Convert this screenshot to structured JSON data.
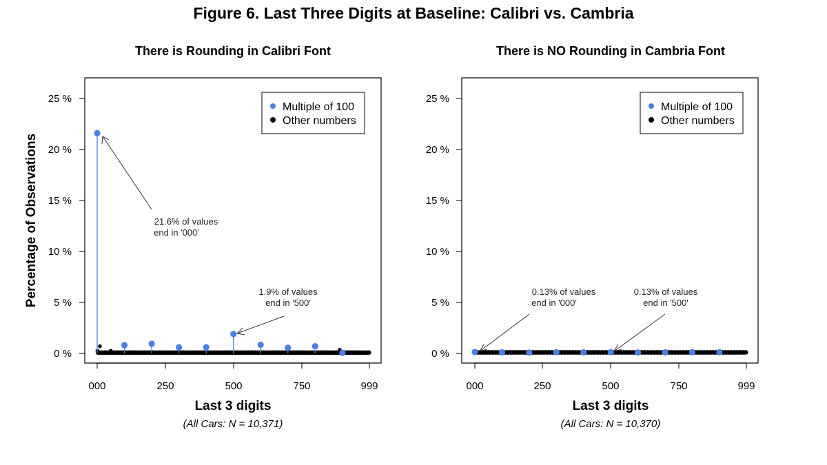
{
  "figure_title": "Figure 6. Last Three Digits at Baseline: Calibri vs. Cambria",
  "colors": {
    "multiple": "#4b7fe6",
    "other": "#000000",
    "frame": "#000000",
    "arrow": "#333333"
  },
  "chart_data": [
    {
      "type": "scatter",
      "title": "There is Rounding in Calibri Font",
      "xlabel": "Last 3 digits",
      "ylabel": "Percentage of Observations",
      "note": "(All Cars: N = 10,371)",
      "xlim": [
        0,
        999
      ],
      "ylim": [
        0,
        25
      ],
      "xticks": [
        0,
        250,
        500,
        750,
        999
      ],
      "xtick_labels": [
        "000",
        "250",
        "500",
        "750",
        "999"
      ],
      "yticks": [
        0,
        5,
        10,
        15,
        20,
        25
      ],
      "ytick_labels": [
        "0 %",
        "5 %",
        "10 %",
        "15 %",
        "20 %",
        "25 %"
      ],
      "legend": [
        "Multiple of 100",
        "Other numbers"
      ],
      "legend_position": "top-right",
      "series": [
        {
          "name": "Multiple of 100",
          "x": [
            0,
            100,
            200,
            300,
            400,
            500,
            600,
            700,
            800,
            900
          ],
          "values": [
            21.6,
            0.8,
            0.95,
            0.6,
            0.6,
            1.9,
            0.85,
            0.55,
            0.7,
            0.05
          ]
        },
        {
          "name": "Other numbers",
          "typical_value": 0.08,
          "spikes": [
            {
              "x": 1,
              "y": 0.25
            },
            {
              "x": 10,
              "y": 0.7
            },
            {
              "x": 50,
              "y": 0.25
            },
            {
              "x": 890,
              "y": 0.35
            }
          ]
        }
      ],
      "annotations": [
        {
          "lines": [
            "21.6% of values",
            "end in '000'"
          ],
          "target_x": 0,
          "target_y": 21.6
        },
        {
          "lines": [
            "1.9% of values",
            "end in '500'"
          ],
          "target_x": 500,
          "target_y": 1.9
        }
      ]
    },
    {
      "type": "scatter",
      "title": "There is NO Rounding in Cambria Font",
      "xlabel": "Last 3 digits",
      "ylabel": "",
      "note": "(All Cars: N = 10,370)",
      "xlim": [
        0,
        999
      ],
      "ylim": [
        0,
        25
      ],
      "xticks": [
        0,
        250,
        500,
        750,
        999
      ],
      "xtick_labels": [
        "000",
        "250",
        "500",
        "750",
        "999"
      ],
      "yticks": [
        0,
        5,
        10,
        15,
        20,
        25
      ],
      "ytick_labels": [
        "0 %",
        "5 %",
        "10 %",
        "15 %",
        "20 %",
        "25 %"
      ],
      "legend": [
        "Multiple of 100",
        "Other numbers"
      ],
      "legend_position": "top-right",
      "series": [
        {
          "name": "Multiple of 100",
          "x": [
            0,
            100,
            200,
            300,
            400,
            500,
            600,
            700,
            800,
            900
          ],
          "values": [
            0.13,
            0.1,
            0.08,
            0.12,
            0.1,
            0.13,
            0.09,
            0.1,
            0.12,
            0.11
          ]
        },
        {
          "name": "Other numbers",
          "typical_value": 0.1,
          "spikes": []
        }
      ],
      "annotations": [
        {
          "lines": [
            "0.13% of values",
            "end in '000'"
          ],
          "target_x": 0,
          "target_y": 0.13
        },
        {
          "lines": [
            "0.13% of values",
            "end in '500'"
          ],
          "target_x": 500,
          "target_y": 0.13
        }
      ]
    }
  ]
}
